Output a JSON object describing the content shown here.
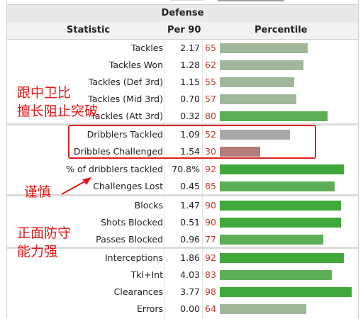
{
  "section_title": "Defense",
  "columns": {
    "statistic": "Statistic",
    "per90": "Per 90",
    "percentile": "Percentile"
  },
  "rows": [
    {
      "stat": "Tackles",
      "per90": "2.17",
      "pct": "65",
      "color": "#a0b79a"
    },
    {
      "stat": "Tackles Won",
      "per90": "1.28",
      "pct": "62",
      "color": "#a0b79a"
    },
    {
      "stat": "Tackles (Def 3rd)",
      "per90": "1.15",
      "pct": "55",
      "color": "#a0b79a"
    },
    {
      "stat": "Tackles (Mid 3rd)",
      "per90": "0.70",
      "pct": "57",
      "color": "#a0b79a"
    },
    {
      "stat": "Tackles (Att 3rd)",
      "per90": "0.32",
      "pct": "80",
      "color": "#5dae57"
    },
    {
      "stat": "Dribblers Tackled",
      "per90": "1.09",
      "pct": "52",
      "color": "#a8a8a8"
    },
    {
      "stat": "Dribbles Challenged",
      "per90": "1.54",
      "pct": "30",
      "color": "#b47c7c"
    },
    {
      "stat": "% of dribblers tackled",
      "per90": "70.8%",
      "pct": "92",
      "color": "#41a83b"
    },
    {
      "stat": "Challenges Lost",
      "per90": "0.45",
      "pct": "85",
      "color": "#5dae57"
    },
    {
      "stat": "Blocks",
      "per90": "1.47",
      "pct": "90",
      "color": "#41a83b"
    },
    {
      "stat": "Shots Blocked",
      "per90": "0.51",
      "pct": "90",
      "color": "#41a83b"
    },
    {
      "stat": "Passes Blocked",
      "per90": "0.96",
      "pct": "77",
      "color": "#5dae57"
    },
    {
      "stat": "Interceptions",
      "per90": "1.86",
      "pct": "92",
      "color": "#41a83b"
    },
    {
      "stat": "Tkl+Int",
      "per90": "4.03",
      "pct": "83",
      "color": "#5dae57"
    },
    {
      "stat": "Clearances",
      "per90": "3.77",
      "pct": "98",
      "color": "#41a83b"
    },
    {
      "stat": "Errors",
      "per90": "0.00",
      "pct": "64",
      "color": "#a0b79a"
    }
  ],
  "annotations": {
    "a1_line1": "跟中卫比",
    "a1_line2": "擅长阻止突破",
    "a2": "谨慎",
    "a3_line1": "正面防守",
    "a3_line2": "能力强"
  },
  "colors": {
    "highlight": "#e02020",
    "pct_text": "#c0392b"
  }
}
